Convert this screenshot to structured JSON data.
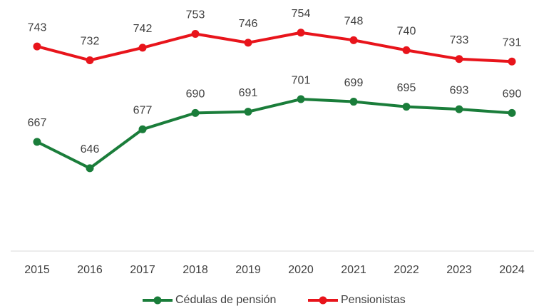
{
  "chart_data": {
    "type": "line",
    "categories": [
      "2015",
      "2016",
      "2017",
      "2018",
      "2019",
      "2020",
      "2021",
      "2022",
      "2023",
      "2024"
    ],
    "series": [
      {
        "name": "Cédulas de pensión",
        "color": "#1a7d3a",
        "values": [
          667,
          646,
          677,
          690,
          691,
          701,
          699,
          695,
          693,
          690
        ]
      },
      {
        "name": "Pensionistas",
        "color": "#e8141b",
        "values": [
          743,
          732,
          742,
          753,
          746,
          754,
          748,
          740,
          733,
          731
        ]
      }
    ],
    "ylim": [
      580,
      780
    ],
    "legend": "bottom"
  }
}
